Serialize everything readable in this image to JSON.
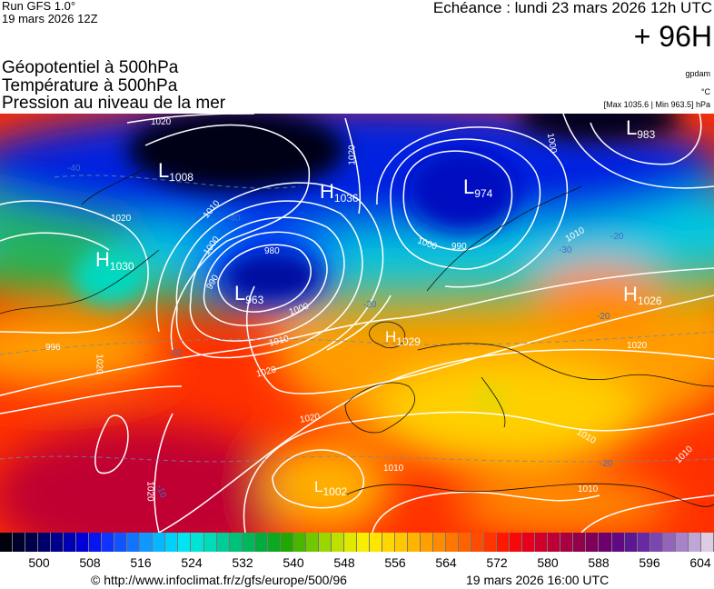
{
  "header": {
    "run": "Run GFS 1.0°",
    "run_date": "19 mars 2026 12Z",
    "echeance": "Echéance : lundi 23 mars 2026 12h UTC",
    "lead": "+ 96H",
    "titles": [
      "Géopotentiel à 500hPa",
      "Température à 500hPa",
      "Pression au niveau de la mer"
    ],
    "unit_geopot": "gpdam",
    "unit_temp": "°C",
    "pressure_range": "[Max 1035.6 | Min 963.5] hPa"
  },
  "systems": [
    {
      "letter": "L",
      "value": "1008"
    },
    {
      "letter": "H",
      "value": "1036"
    },
    {
      "letter": "L",
      "value": "974"
    },
    {
      "letter": "L",
      "value": "983"
    },
    {
      "letter": "H",
      "value": "1030"
    },
    {
      "letter": "L",
      "value": "963"
    },
    {
      "letter": "H",
      "value": "1026"
    },
    {
      "letter": "H",
      "value": "1029"
    },
    {
      "letter": "L",
      "value": "1002"
    }
  ],
  "isobar_labels": [
    "1020",
    "1020",
    "1010",
    "1000",
    "990",
    "980",
    "1000",
    "1020",
    "1000",
    "1000",
    "990",
    "1010",
    "1020",
    "1020",
    "1020",
    "1020",
    "1010",
    "1010",
    "1010",
    "1010",
    "1020",
    "1010",
    "996"
  ],
  "temperature_labels": [
    "-40",
    "-40",
    "-30",
    "-20",
    "-20",
    "-20",
    "-20",
    "-20",
    "-10"
  ],
  "colorbar": {
    "labels": [
      "500",
      "508",
      "516",
      "524",
      "532",
      "540",
      "548",
      "556",
      "564",
      "572",
      "580",
      "588",
      "596",
      "604"
    ],
    "colors": [
      "#00000f",
      "#00003c",
      "#000070",
      "#0000a8",
      "#0000e0",
      "#1030ff",
      "#1060ff",
      "#1098ff",
      "#00c8ff",
      "#00e8f0",
      "#00e0c0",
      "#00c890",
      "#00b860",
      "#00a830",
      "#20a800",
      "#60c000",
      "#a0d800",
      "#d8e800",
      "#fff000",
      "#ffd800",
      "#ffc000",
      "#ffa000",
      "#ff8000",
      "#ff6000",
      "#ff3c00",
      "#ff1000",
      "#e8001c",
      "#c80030",
      "#a80040",
      "#880050",
      "#6a0070",
      "#5a1090",
      "#6a30a8",
      "#9060b8",
      "#b090d0",
      "#dccce4"
    ]
  },
  "footer": {
    "url": "© http://www.infoclimat.fr/z/gfs/europe/500/96",
    "generated": "19 mars 2026 16:00 UTC"
  }
}
